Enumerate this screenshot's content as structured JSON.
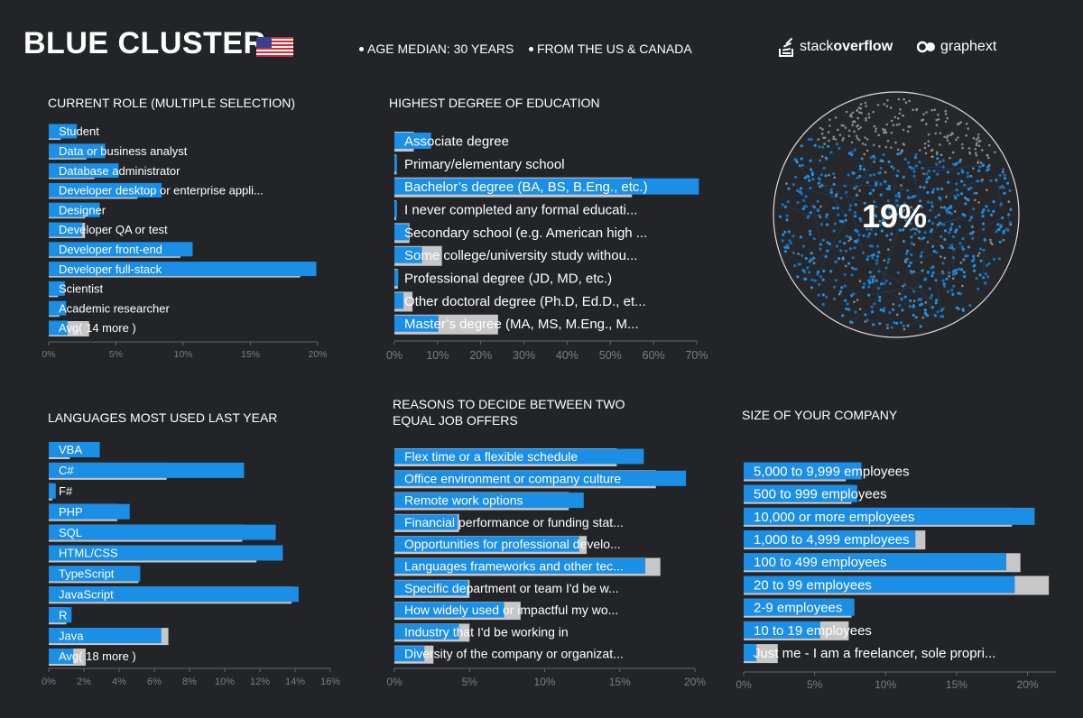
{
  "header": {
    "title": "BLUE CLUSTER",
    "age_info": "AGE MEDIAN: 30 YEARS",
    "origin_info": "FROM THE US & CANADA",
    "logo_stackoverflow_a": "stack",
    "logo_stackoverflow_b": "overflow",
    "logo_graphext": "graphext"
  },
  "cluster": {
    "percent_label": "19%",
    "share": 0.19
  },
  "colors": {
    "background": "#222428",
    "cluster_blue": "#1b8ee6",
    "average_gray": "#c7c7c7",
    "axis": "#666666"
  },
  "chart_data": [
    {
      "type": "bar",
      "title": "CURRENT ROLE (MULTIPLE SELECTION)",
      "orientation": "horizontal",
      "categories": [
        "Student",
        "Data or business analyst",
        "Database administrator",
        "Developer desktop or enterprise appli...",
        "Designer",
        "Developer QA or test",
        "Developer front-end",
        "Developer full-stack",
        "Scientist",
        "Academic researcher",
        "Avg( 14 more )"
      ],
      "series": [
        {
          "name": "cluster",
          "values": [
            2.1,
            4.2,
            5.2,
            8.4,
            3.8,
            2.5,
            10.7,
            19.9,
            1.2,
            1.3,
            1.4
          ]
        },
        {
          "name": "average",
          "values": [
            0.9,
            2.8,
            3.4,
            6.6,
            2.7,
            2.7,
            9.8,
            18.7,
            0.7,
            0.8,
            3.0
          ]
        }
      ],
      "xticks": [
        "0%",
        "5%",
        "10%",
        "15%",
        "20%"
      ],
      "xlim": [
        0,
        20
      ]
    },
    {
      "type": "bar",
      "title": "HIGHEST DEGREE OF EDUCATION",
      "orientation": "horizontal",
      "categories": [
        "Associate degree",
        "Primary/elementary school",
        "Bachelor’s degree (BA, BS, B.Eng., etc.)",
        "I never completed any formal educati...",
        "Secondary school (e.g. American high ...",
        "Some college/university study withou...",
        "Professional degree (JD, MD, etc.)",
        "Other doctoral degree (Ph.D, Ed.D., et...",
        "Master’s degree (MA, MS, M.Eng., M..."
      ],
      "series": [
        {
          "name": "cluster",
          "values": [
            8.5,
            0.6,
            70.5,
            0.6,
            3.3,
            6.4,
            0.9,
            2.1,
            10.2
          ]
        },
        {
          "name": "average",
          "values": [
            4.5,
            0.5,
            55.0,
            0.4,
            3.5,
            11.0,
            0.8,
            4.2,
            24.0
          ]
        }
      ],
      "xticks": [
        "0%",
        "10%",
        "20%",
        "30%",
        "40%",
        "50%",
        "60%",
        "70%"
      ],
      "xlim": [
        0,
        70
      ]
    },
    {
      "type": "bar",
      "title": "LANGUAGES MOST USED LAST YEAR",
      "orientation": "horizontal",
      "categories": [
        "VBA",
        "C#",
        "F#",
        "PHP",
        "SQL",
        "HTML/CSS",
        "TypeScript",
        "JavaScript",
        "R",
        "Java",
        "Avg( 18 more )"
      ],
      "series": [
        {
          "name": "cluster",
          "values": [
            2.9,
            11.1,
            0.4,
            4.6,
            12.9,
            13.3,
            5.2,
            14.2,
            1.3,
            6.4,
            1.4
          ]
        },
        {
          "name": "average",
          "values": [
            1.2,
            6.7,
            0.2,
            3.9,
            11.0,
            11.8,
            5.1,
            13.8,
            1.0,
            6.8,
            2.1
          ]
        }
      ],
      "xticks": [
        "0%",
        "2%",
        "4%",
        "6%",
        "8%",
        "10%",
        "12%",
        "14%",
        "16%"
      ],
      "xlim": [
        0,
        16
      ]
    },
    {
      "type": "bar",
      "title": "REASONS TO DECIDE BETWEEN TWO EQUAL JOB OFFERS",
      "orientation": "horizontal",
      "categories": [
        "Flex time or a flexible schedule",
        "Office environment or company culture",
        "Remote work options",
        "Financial performance or funding stat...",
        "Opportunities for professional develo...",
        "Languages frameworks and other tec...",
        "Specific department or team I'd be w...",
        "How widely used or impactful my wo...",
        "Industry that I'd be working in",
        "Diversity of the company or organizat..."
      ],
      "series": [
        {
          "name": "cluster",
          "values": [
            16.6,
            19.4,
            12.6,
            4.2,
            12.3,
            16.7,
            4.9,
            7.3,
            4.3,
            2.0
          ]
        },
        {
          "name": "average",
          "values": [
            14.8,
            17.4,
            11.6,
            4.3,
            12.8,
            17.7,
            5.0,
            8.4,
            5.0,
            2.6
          ]
        }
      ],
      "xticks": [
        "0%",
        "5%",
        "10%",
        "15%",
        "20%"
      ],
      "xlim": [
        0,
        20
      ]
    },
    {
      "type": "bar",
      "title": "SIZE OF YOUR COMPANY",
      "orientation": "horizontal",
      "categories": [
        "5,000 to 9,999 employees",
        "500 to 999 employees",
        "10,000 or more employees",
        "1,000 to 4,999 employees",
        "100 to 499 employees",
        "20 to 99 employees",
        "2-9 employees",
        "10 to 19 employees",
        "Just me - I am a freelancer, sole propri..."
      ],
      "series": [
        {
          "name": "cluster",
          "values": [
            8.3,
            8.0,
            20.5,
            12.1,
            18.5,
            19.1,
            7.8,
            5.4,
            0.9
          ]
        },
        {
          "name": "average",
          "values": [
            7.2,
            7.6,
            18.9,
            12.8,
            19.5,
            21.5,
            7.6,
            7.4,
            2.4
          ]
        }
      ],
      "xticks": [
        "0%",
        "5%",
        "10%",
        "15%",
        "20%"
      ],
      "xlim": [
        0,
        22
      ]
    }
  ]
}
